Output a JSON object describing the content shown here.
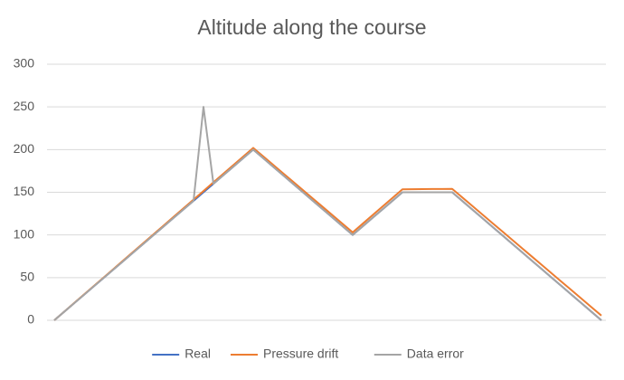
{
  "chart_data": {
    "type": "line",
    "title": "Altitude along the course",
    "categories": [
      null,
      null,
      null,
      null,
      null,
      null,
      null,
      null,
      null,
      null,
      null,
      null,
      null,
      null,
      null,
      null,
      null,
      null,
      null,
      null,
      null,
      null,
      null,
      null,
      null,
      null,
      null,
      null,
      null,
      null,
      null,
      null,
      null,
      null,
      null,
      null,
      null,
      null,
      null,
      null,
      null,
      null,
      null,
      null,
      null,
      null,
      null,
      null,
      null,
      null,
      null,
      null,
      null,
      null,
      null,
      null
    ],
    "series": [
      {
        "name": "Real",
        "color": "#4472c4",
        "values": [
          0,
          10,
          20,
          30,
          40,
          50,
          60,
          70,
          80,
          90,
          100,
          110,
          120,
          130,
          140,
          150,
          160,
          170,
          180,
          190,
          200,
          190,
          180,
          170,
          160,
          150,
          140,
          130,
          120,
          110,
          100,
          110,
          120,
          130,
          140,
          150,
          150,
          150,
          150,
          150,
          150,
          140,
          130,
          120,
          110,
          100,
          90,
          80,
          70,
          60,
          50,
          40,
          30,
          20,
          10,
          0
        ]
      },
      {
        "name": "Pressure drift",
        "color": "#ed7d31",
        "values": [
          0,
          10.1,
          20.2,
          30.3,
          40.4,
          50.5,
          60.6,
          70.7,
          80.8,
          90.9,
          101,
          111.1,
          121.2,
          131.3,
          141.4,
          151.5,
          161.6,
          171.7,
          181.8,
          191.9,
          202,
          192.1,
          182.2,
          172.3,
          162.4,
          152.5,
          142.6,
          132.7,
          122.8,
          112.9,
          103,
          113.1,
          123.2,
          133.3,
          143.4,
          153.5,
          153.6,
          153.7,
          153.8,
          153.9,
          154,
          144.1,
          134.2,
          124.3,
          114.4,
          104.5,
          94.6,
          84.7,
          74.8,
          64.9,
          55,
          45.1,
          35.2,
          25.3,
          15.4,
          5.5
        ]
      },
      {
        "name": "Data error",
        "color": "#a5a5a5",
        "values": [
          0,
          10,
          20,
          30,
          40,
          50,
          60,
          70,
          80,
          90,
          100,
          110,
          120,
          130,
          140,
          250,
          160,
          170,
          180,
          190,
          200,
          190,
          180,
          170,
          160,
          150,
          140,
          130,
          120,
          110,
          100,
          110,
          120,
          130,
          140,
          150,
          150,
          150,
          150,
          150,
          150,
          140,
          130,
          120,
          110,
          100,
          90,
          80,
          70,
          60,
          50,
          40,
          30,
          20,
          10,
          0
        ]
      }
    ],
    "ylim": [
      0,
      300
    ],
    "yticks": [
      0,
      50,
      100,
      150,
      200,
      250,
      300
    ],
    "grid": true,
    "legend": "bottom"
  }
}
